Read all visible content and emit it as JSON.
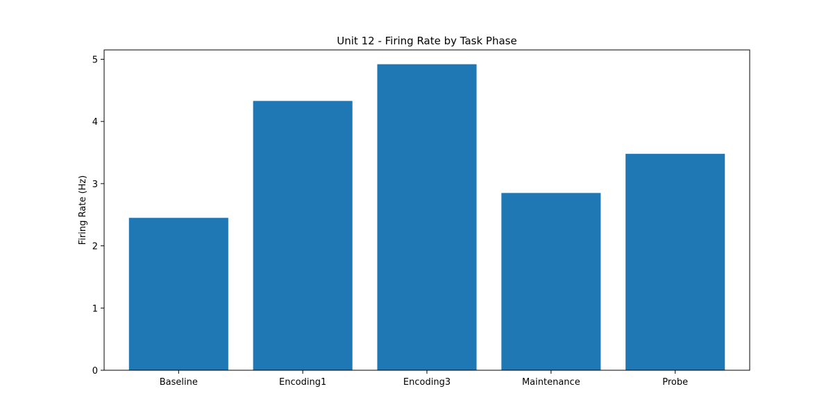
{
  "chart_data": {
    "type": "bar",
    "title": "Unit 12 - Firing Rate by Task Phase",
    "xlabel": "",
    "ylabel": "Firing Rate (Hz)",
    "categories": [
      "Baseline",
      "Encoding1",
      "Encoding3",
      "Maintenance",
      "Probe"
    ],
    "values": [
      2.45,
      4.33,
      4.92,
      2.85,
      3.48
    ],
    "ylim": [
      0,
      5.15
    ],
    "yticks": [
      0,
      1,
      2,
      3,
      4,
      5
    ],
    "grid": false,
    "legend": "none",
    "bar_color": "#1f77b4"
  }
}
